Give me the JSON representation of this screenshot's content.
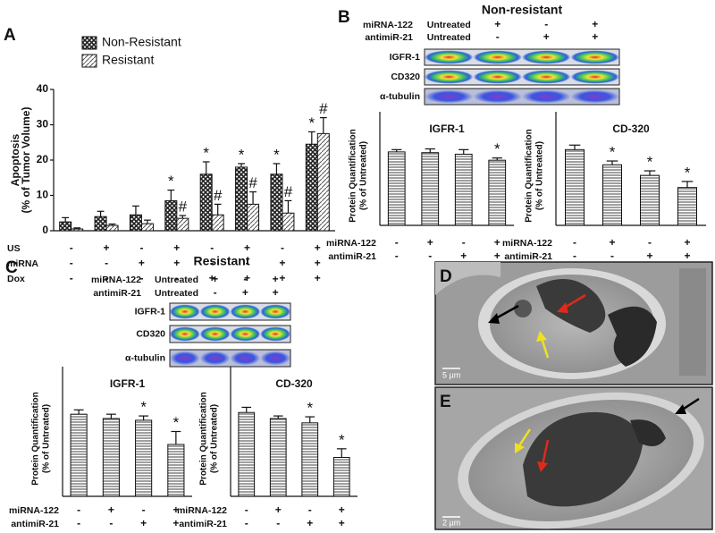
{
  "chart_data": [
    {
      "type": "bar",
      "panel": "A",
      "ylabel": [
        "Apoptosis",
        "(% of Tumor Volume)"
      ],
      "ylim": [
        0,
        40
      ],
      "yticks": [
        0,
        10,
        20,
        30,
        40
      ],
      "series": [
        {
          "name": "Non-Resistant",
          "color": "#222222",
          "pattern": "crosshatch",
          "values": [
            2.5,
            4,
            4.5,
            8.5,
            16,
            18,
            16,
            24.5
          ],
          "errors": [
            1.2,
            1.5,
            2.5,
            3,
            3.5,
            1,
            3,
            3.5
          ],
          "markers": [
            null,
            null,
            null,
            "*",
            "*",
            "*",
            "*",
            "*"
          ]
        },
        {
          "name": "Resistant",
          "color": "#555555",
          "pattern": "diagonal",
          "values": [
            0.5,
            1.5,
            2,
            3.5,
            4.5,
            7.5,
            5,
            27.5
          ],
          "errors": [
            0.3,
            0.4,
            1,
            0.8,
            3,
            3.5,
            3.5,
            4.5
          ],
          "markers": [
            null,
            null,
            null,
            "#",
            "#",
            "#",
            "#",
            "#"
          ]
        }
      ],
      "conditions": [
        {
          "name": "US",
          "values": [
            "-",
            "+",
            "-",
            "+",
            "-",
            "+",
            "-",
            "+"
          ]
        },
        {
          "name": "miRNA",
          "values": [
            "-",
            "-",
            "+",
            "+",
            "-",
            "-",
            "+",
            "+"
          ]
        },
        {
          "name": "Dox",
          "values": [
            "-",
            "-",
            "-",
            "-",
            "+",
            "+",
            "+",
            "+"
          ]
        }
      ]
    },
    {
      "type": "bar",
      "title": "IGFR-1",
      "ylabel": [
        "Protein Quantification",
        "(% of Untreated)"
      ],
      "ylim": [
        0,
        150
      ],
      "color": "#777777",
      "pattern": "horizontal",
      "values": [
        97,
        96,
        94,
        86
      ],
      "errors": [
        3,
        5,
        6,
        3
      ],
      "markers": [
        null,
        null,
        null,
        "*"
      ],
      "conditions": [
        {
          "name": "miRNA-122",
          "values": [
            "-",
            "+",
            "-",
            "+"
          ]
        },
        {
          "name": "antimiR-21",
          "values": [
            "-",
            "-",
            "+",
            "+"
          ]
        }
      ]
    },
    {
      "type": "bar",
      "title": "CD-320",
      "ylabel": [
        "Protein Quantification",
        "(% of Untreated)"
      ],
      "ylim": [
        0,
        150
      ],
      "color": "#777777",
      "pattern": "horizontal",
      "values": [
        100,
        80,
        66,
        50
      ],
      "errors": [
        6,
        5,
        6,
        8
      ],
      "markers": [
        null,
        "*",
        "*",
        "*"
      ],
      "conditions": [
        {
          "name": "miRNA-122",
          "values": [
            "-",
            "+",
            "-",
            "+"
          ]
        },
        {
          "name": "antimiR-21",
          "values": [
            "-",
            "-",
            "+",
            "+"
          ]
        }
      ]
    },
    {
      "type": "bar",
      "title": "IGFR-1",
      "ylabel": [
        "Protein Quantification",
        "(% of Untreated)"
      ],
      "ylim": [
        0,
        150
      ],
      "color": "#777777",
      "pattern": "horizontal",
      "values": [
        95,
        90,
        88,
        60
      ],
      "errors": [
        5,
        5,
        5,
        15
      ],
      "markers": [
        null,
        null,
        "*",
        "*"
      ],
      "conditions": [
        {
          "name": "miRNA-122",
          "values": [
            "-",
            "+",
            "-",
            "+"
          ]
        },
        {
          "name": "antimiR-21",
          "values": [
            "-",
            "-",
            "+",
            "+"
          ]
        }
      ]
    },
    {
      "type": "bar",
      "title": "CD-320",
      "ylabel": [
        "Protein Quantification",
        "(% of Untreated)"
      ],
      "ylim": [
        0,
        150
      ],
      "color": "#777777",
      "pattern": "horizontal",
      "values": [
        97,
        90,
        85,
        45
      ],
      "errors": [
        6,
        3,
        7,
        10
      ],
      "markers": [
        null,
        null,
        "*",
        "*"
      ],
      "conditions": [
        {
          "name": "miRNA-122",
          "values": [
            "-",
            "+",
            "-",
            "+"
          ]
        },
        {
          "name": "antimiR-21",
          "values": [
            "-",
            "-",
            "+",
            "+"
          ]
        }
      ]
    }
  ],
  "blots": [
    {
      "panel": "B",
      "title": "Non-resistant",
      "header": [
        {
          "name": "miRNA-122",
          "values": [
            "Untreated",
            "+",
            "-",
            "+"
          ]
        },
        {
          "name": "antimiR-21",
          "values": [
            "Untreated",
            "-",
            "+",
            "+"
          ]
        }
      ],
      "rows": [
        "IGFR-1",
        "CD320",
        "α-tubulin"
      ]
    },
    {
      "panel": "C",
      "title": "Resistant",
      "header": [
        {
          "name": "miRNA-122",
          "values": [
            "Untreated",
            "+",
            "-",
            "+"
          ]
        },
        {
          "name": "antimiR-21",
          "values": [
            "Untreated",
            "-",
            "+",
            "+"
          ]
        }
      ],
      "rows": [
        "IGFR-1",
        "CD320",
        "α-tubulin"
      ]
    }
  ],
  "micrographs": [
    {
      "panel": "D",
      "scale": "5 µm"
    },
    {
      "panel": "E",
      "scale": "2 µm"
    }
  ]
}
